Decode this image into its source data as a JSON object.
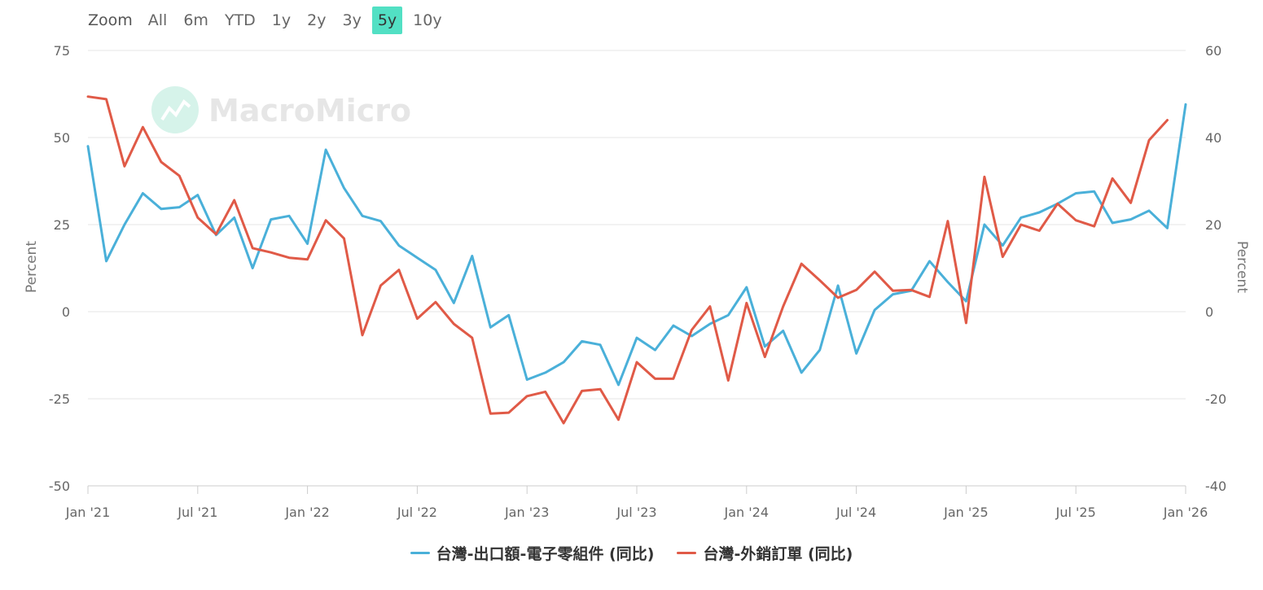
{
  "range_selector": {
    "zoom_label": "Zoom",
    "buttons": [
      "All",
      "6m",
      "YTD",
      "1y",
      "2y",
      "3y",
      "5y",
      "10y"
    ],
    "active": "5y"
  },
  "watermark": "MacroMicro",
  "colors": {
    "series1": "#4ab0d9",
    "series2": "#e05a47",
    "active_button": "#52e0c4"
  },
  "chart_data": {
    "type": "line",
    "x_start": "2021-01",
    "x_ticks": [
      "Jan '21",
      "Jul '21",
      "Jan '22",
      "Jul '22",
      "Jan '23",
      "Jul '23",
      "Jan '24",
      "Jul '24",
      "Jan '25",
      "Jul '25",
      "Jan '26"
    ],
    "y_left": {
      "title": "Percent",
      "ticks": [
        "75",
        "50",
        "25",
        "0",
        "-25",
        "-50"
      ],
      "range": [
        -50,
        75
      ]
    },
    "y_right": {
      "title": "Percent",
      "ticks": [
        "60",
        "40",
        "20",
        "0",
        "-20",
        "-40"
      ],
      "range": [
        -40,
        60
      ]
    },
    "grid": true,
    "legend_position": "bottom",
    "series": [
      {
        "name": "台灣-出口額-電子零組件 (同比)",
        "axis": "left",
        "values": [
          47.5,
          14.5,
          25,
          34,
          29.5,
          30,
          33.5,
          22,
          27,
          12.5,
          26.5,
          27.5,
          19.5,
          46.5,
          35.5,
          27.5,
          26,
          19,
          15.5,
          12,
          2.5,
          16,
          -4.5,
          -1,
          -19.5,
          -17.5,
          -14.5,
          -8.5,
          -9.5,
          -21,
          -7.5,
          -11,
          -4,
          -7,
          -3.5,
          -1,
          7,
          -10,
          -5.5,
          -17.5,
          -11,
          7.5,
          -12,
          0.5,
          5,
          6,
          14.5,
          8.5,
          3,
          25,
          19,
          27,
          28.5,
          31,
          34,
          34.5,
          25.5,
          26.5,
          29,
          24,
          59.5
        ]
      },
      {
        "name": "台灣-外銷訂單 (同比)",
        "axis": "right",
        "values": [
          49.4,
          48.8,
          33.4,
          42.4,
          34.4,
          31.2,
          21.6,
          17.8,
          25.6,
          14.6,
          13.6,
          12.4,
          12,
          21,
          16.8,
          -5.4,
          6,
          9.6,
          -1.6,
          2.2,
          -2.8,
          -6,
          -23.4,
          -23.2,
          -19.4,
          -18.4,
          -25.6,
          -18.2,
          -17.8,
          -24.8,
          -11.6,
          -15.4,
          -15.4,
          -4.2,
          1.2,
          -15.8,
          2,
          -10.4,
          1.2,
          11,
          7.2,
          3.2,
          5,
          9.2,
          4.8,
          5,
          3.4,
          20.8,
          -2.6,
          31,
          12.6,
          20,
          18.6,
          24.8,
          21,
          19.6,
          30.6,
          25,
          39.4,
          44
        ]
      }
    ]
  }
}
